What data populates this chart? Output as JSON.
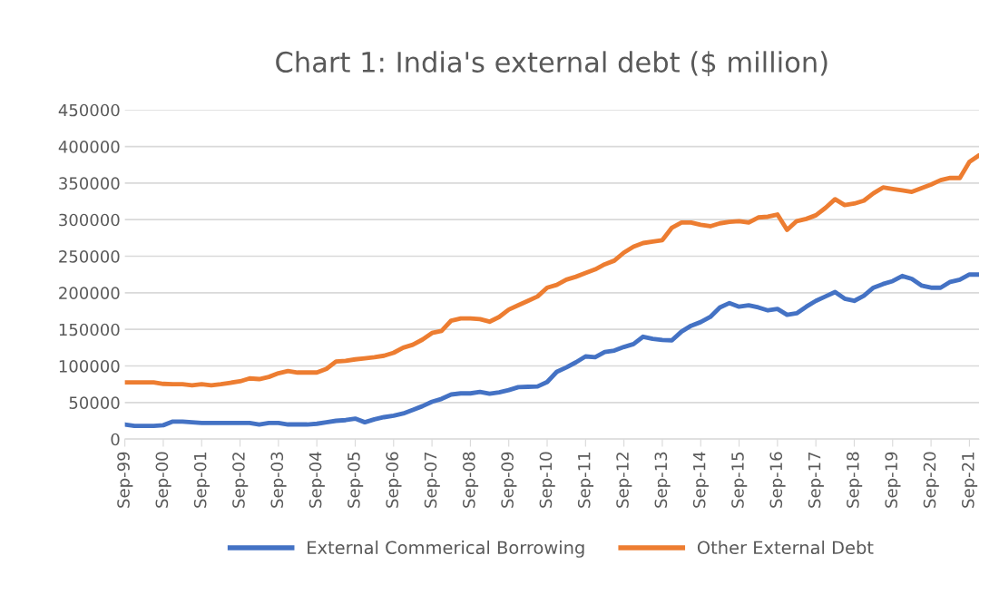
{
  "chart_data": {
    "type": "line",
    "title": "Chart 1: India's external debt ($ million)",
    "categories": [
      "Sep-99",
      null,
      null,
      null,
      "Sep-00",
      null,
      null,
      null,
      "Sep-01",
      null,
      null,
      null,
      "Sep-02",
      null,
      null,
      null,
      "Sep-03",
      null,
      null,
      null,
      "Sep-04",
      null,
      null,
      null,
      "Sep-05",
      null,
      null,
      null,
      "Sep-06",
      null,
      null,
      null,
      "Sep-07",
      null,
      null,
      null,
      "Sep-08",
      null,
      null,
      null,
      "Sep-09",
      null,
      null,
      null,
      "Sep-10",
      null,
      null,
      null,
      "Sep-11",
      null,
      null,
      null,
      "Sep-12",
      null,
      null,
      null,
      "Sep-13",
      null,
      null,
      null,
      "Sep-14",
      null,
      null,
      null,
      "Sep-15",
      null,
      null,
      null,
      "Sep-16",
      null,
      null,
      null,
      "Sep-17",
      null,
      null,
      null,
      "Sep-18",
      null,
      null,
      null,
      "Sep-19",
      null,
      null,
      null,
      "Sep-20",
      null,
      null,
      null,
      "Sep-21",
      null
    ],
    "series": [
      {
        "name": "External Commerical Borrowing",
        "color": "#4472c4",
        "values": [
          20000,
          18000,
          18000,
          18000,
          19000,
          24000,
          24000,
          23000,
          22000,
          22000,
          22000,
          22000,
          22000,
          22000,
          20000,
          22000,
          22000,
          20000,
          20000,
          20000,
          21000,
          23000,
          25000,
          26000,
          28000,
          23000,
          27000,
          30000,
          32000,
          35000,
          40000,
          45000,
          51000,
          55000,
          61000,
          62500,
          62500,
          64500,
          62000,
          64000,
          67000,
          71000,
          71500,
          72000,
          78000,
          92000,
          98000,
          105000,
          113000,
          112000,
          119000,
          121000,
          126000,
          130000,
          140000,
          137000,
          135500,
          135000,
          147000,
          155000,
          160000,
          167000,
          180000,
          186000,
          181000,
          183000,
          180000,
          176000,
          178000,
          170000,
          172000,
          181000,
          189000,
          195000,
          201000,
          192000,
          189000,
          196000,
          207000,
          212000,
          216000,
          223000,
          219000,
          210000,
          207000,
          207000,
          215000,
          218000,
          225000,
          225000
        ]
      },
      {
        "name": "Other External Debt",
        "color": "#ed7d31",
        "values": [
          77500,
          77500,
          77500,
          77500,
          75500,
          75000,
          75000,
          73500,
          75000,
          73500,
          75000,
          77000,
          79000,
          83000,
          82000,
          85000,
          90000,
          93000,
          91000,
          91000,
          91000,
          96000,
          106000,
          107000,
          109000,
          110500,
          112000,
          114000,
          118000,
          125000,
          129000,
          136000,
          145000,
          148000,
          162000,
          165000,
          165000,
          164000,
          160500,
          167000,
          177000,
          183000,
          189000,
          195000,
          207000,
          210800,
          218000,
          222000,
          227000,
          232000,
          239000,
          244000,
          255000,
          263000,
          268000,
          270000,
          272000,
          289000,
          296000,
          296000,
          293000,
          291000,
          295000,
          297000,
          298000,
          296000,
          303000,
          304000,
          307000,
          286000,
          298000,
          301000,
          306000,
          316000,
          328000,
          320000,
          322000,
          326000,
          336000,
          344000,
          342000,
          340000,
          338000,
          343000,
          348000,
          354000,
          357000,
          357000,
          379000,
          388000
        ]
      }
    ],
    "ylim": [
      0,
      450000
    ],
    "yticks": [
      0,
      50000,
      100000,
      150000,
      200000,
      250000,
      300000,
      350000,
      400000,
      450000
    ],
    "grid": "y",
    "legend": "bottom",
    "marker": "none",
    "line_style": "solid"
  }
}
